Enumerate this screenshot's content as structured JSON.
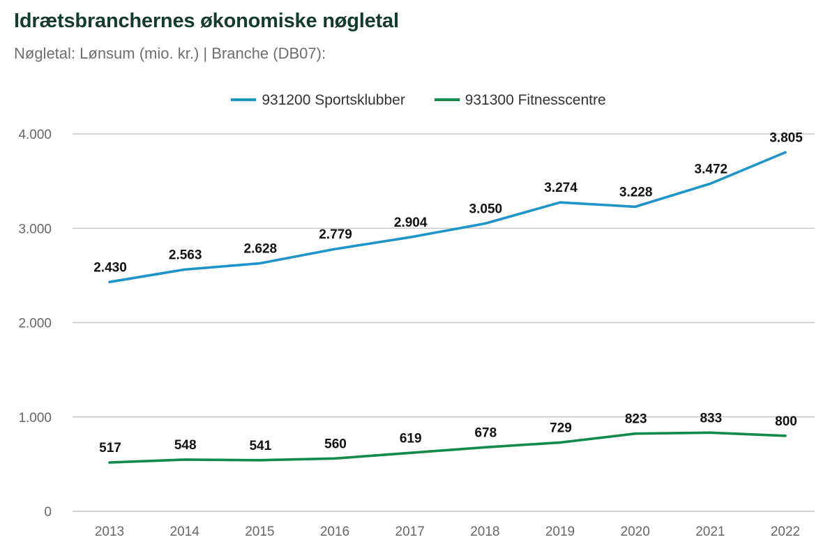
{
  "chart_data": {
    "type": "line",
    "title": "Idrætsbranchernes økonomiske nøgletal",
    "subtitle": "Nøgletal: Lønsum (mio. kr.) | Branche (DB07):",
    "categories": [
      "2013",
      "2014",
      "2015",
      "2016",
      "2017",
      "2018",
      "2019",
      "2020",
      "2021",
      "2022"
    ],
    "series": [
      {
        "name": "931200 Sportsklubber",
        "color": "#1f95c7",
        "values": [
          2430,
          2563,
          2628,
          2779,
          2904,
          3050,
          3274,
          3228,
          3472,
          3805
        ],
        "labels": [
          "2.430",
          "2.563",
          "2.628",
          "2.779",
          "2.904",
          "3.050",
          "3.274",
          "3.228",
          "3.472",
          "3.805"
        ]
      },
      {
        "name": "931300 Fitnesscentre",
        "color": "#118a4b",
        "values": [
          517,
          548,
          541,
          560,
          619,
          678,
          729,
          823,
          833,
          800
        ],
        "labels": [
          "517",
          "548",
          "541",
          "560",
          "619",
          "678",
          "729",
          "823",
          "833",
          "800"
        ]
      }
    ],
    "xlabel": "",
    "ylabel": "",
    "ylim": [
      0,
      4000
    ],
    "yticks": [
      0,
      1000,
      2000,
      3000,
      4000
    ],
    "ytick_labels": [
      "0",
      "1.000",
      "2.000",
      "3.000",
      "4.000"
    ],
    "grid": true,
    "legend_position": "top-center"
  }
}
